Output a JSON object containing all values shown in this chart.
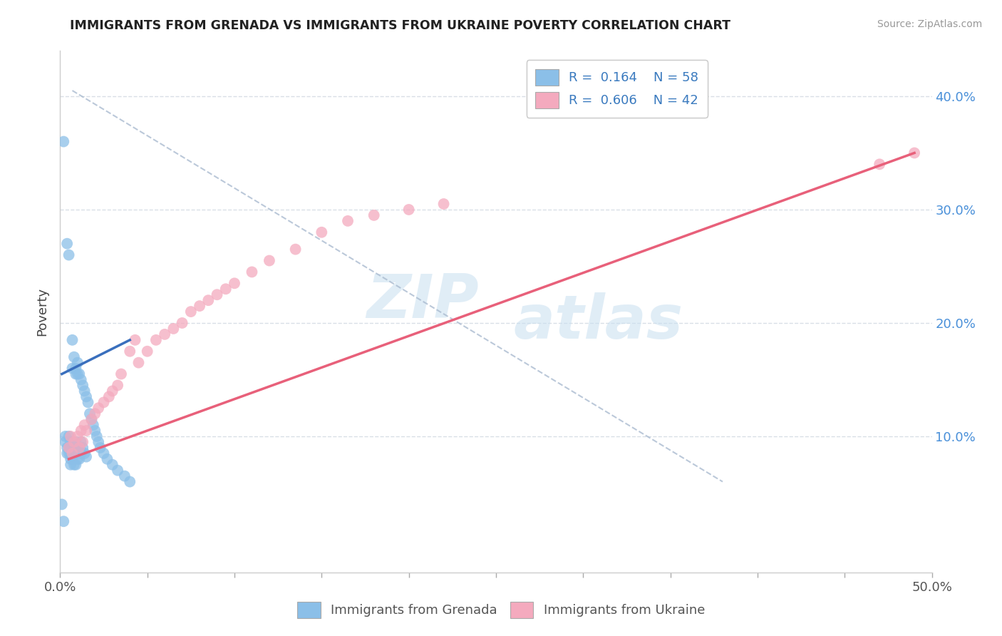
{
  "title": "IMMIGRANTS FROM GRENADA VS IMMIGRANTS FROM UKRAINE POVERTY CORRELATION CHART",
  "source": "Source: ZipAtlas.com",
  "ylabel": "Poverty",
  "y_ticks": [
    0.1,
    0.2,
    0.3,
    0.4
  ],
  "y_tick_labels": [
    "10.0%",
    "20.0%",
    "30.0%",
    "40.0%"
  ],
  "xlim": [
    0.0,
    0.5
  ],
  "ylim": [
    -0.02,
    0.44
  ],
  "color_grenada": "#8bbfe8",
  "color_ukraine": "#f4aabe",
  "line_color_grenada": "#3a6fbd",
  "line_color_ukraine": "#e8607a",
  "dash_color": "#aabbd0",
  "background_color": "#ffffff",
  "grid_color": "#d0d8e0",
  "scatter_grenada_x": [
    0.002,
    0.003,
    0.003,
    0.004,
    0.004,
    0.004,
    0.005,
    0.005,
    0.005,
    0.005,
    0.006,
    0.006,
    0.006,
    0.006,
    0.006,
    0.007,
    0.007,
    0.007,
    0.007,
    0.008,
    0.008,
    0.008,
    0.009,
    0.009,
    0.009,
    0.009,
    0.01,
    0.01,
    0.01,
    0.01,
    0.011,
    0.011,
    0.011,
    0.012,
    0.012,
    0.012,
    0.013,
    0.013,
    0.014,
    0.014,
    0.015,
    0.015,
    0.016,
    0.017,
    0.018,
    0.019,
    0.02,
    0.021,
    0.022,
    0.023,
    0.025,
    0.027,
    0.03,
    0.033,
    0.037,
    0.04,
    0.001,
    0.002
  ],
  "scatter_grenada_y": [
    0.36,
    0.095,
    0.1,
    0.27,
    0.085,
    0.09,
    0.26,
    0.1,
    0.09,
    0.085,
    0.095,
    0.09,
    0.085,
    0.08,
    0.075,
    0.185,
    0.16,
    0.09,
    0.08,
    0.17,
    0.085,
    0.075,
    0.16,
    0.155,
    0.095,
    0.075,
    0.165,
    0.155,
    0.09,
    0.08,
    0.155,
    0.09,
    0.08,
    0.15,
    0.095,
    0.085,
    0.145,
    0.09,
    0.14,
    0.085,
    0.135,
    0.082,
    0.13,
    0.12,
    0.115,
    0.11,
    0.105,
    0.1,
    0.095,
    0.09,
    0.085,
    0.08,
    0.075,
    0.07,
    0.065,
    0.06,
    0.04,
    0.025
  ],
  "scatter_ukraine_x": [
    0.005,
    0.006,
    0.007,
    0.008,
    0.01,
    0.011,
    0.012,
    0.013,
    0.014,
    0.015,
    0.018,
    0.02,
    0.022,
    0.025,
    0.028,
    0.03,
    0.033,
    0.035,
    0.04,
    0.043,
    0.045,
    0.05,
    0.055,
    0.06,
    0.065,
    0.07,
    0.075,
    0.08,
    0.085,
    0.09,
    0.095,
    0.1,
    0.11,
    0.12,
    0.135,
    0.15,
    0.165,
    0.18,
    0.2,
    0.22,
    0.47,
    0.49
  ],
  "scatter_ukraine_y": [
    0.09,
    0.1,
    0.085,
    0.095,
    0.1,
    0.09,
    0.105,
    0.095,
    0.11,
    0.105,
    0.115,
    0.12,
    0.125,
    0.13,
    0.135,
    0.14,
    0.145,
    0.155,
    0.175,
    0.185,
    0.165,
    0.175,
    0.185,
    0.19,
    0.195,
    0.2,
    0.21,
    0.215,
    0.22,
    0.225,
    0.23,
    0.235,
    0.245,
    0.255,
    0.265,
    0.28,
    0.29,
    0.295,
    0.3,
    0.305,
    0.34,
    0.35
  ],
  "watermark_zip": "ZIP",
  "watermark_atlas": "atlas",
  "grenada_line_x": [
    0.001,
    0.04
  ],
  "grenada_line_y": [
    0.155,
    0.185
  ],
  "ukraine_line_x": [
    0.005,
    0.49
  ],
  "ukraine_line_y": [
    0.08,
    0.35
  ],
  "dash_line_x": [
    0.007,
    0.38
  ],
  "dash_line_y": [
    0.405,
    0.06
  ]
}
